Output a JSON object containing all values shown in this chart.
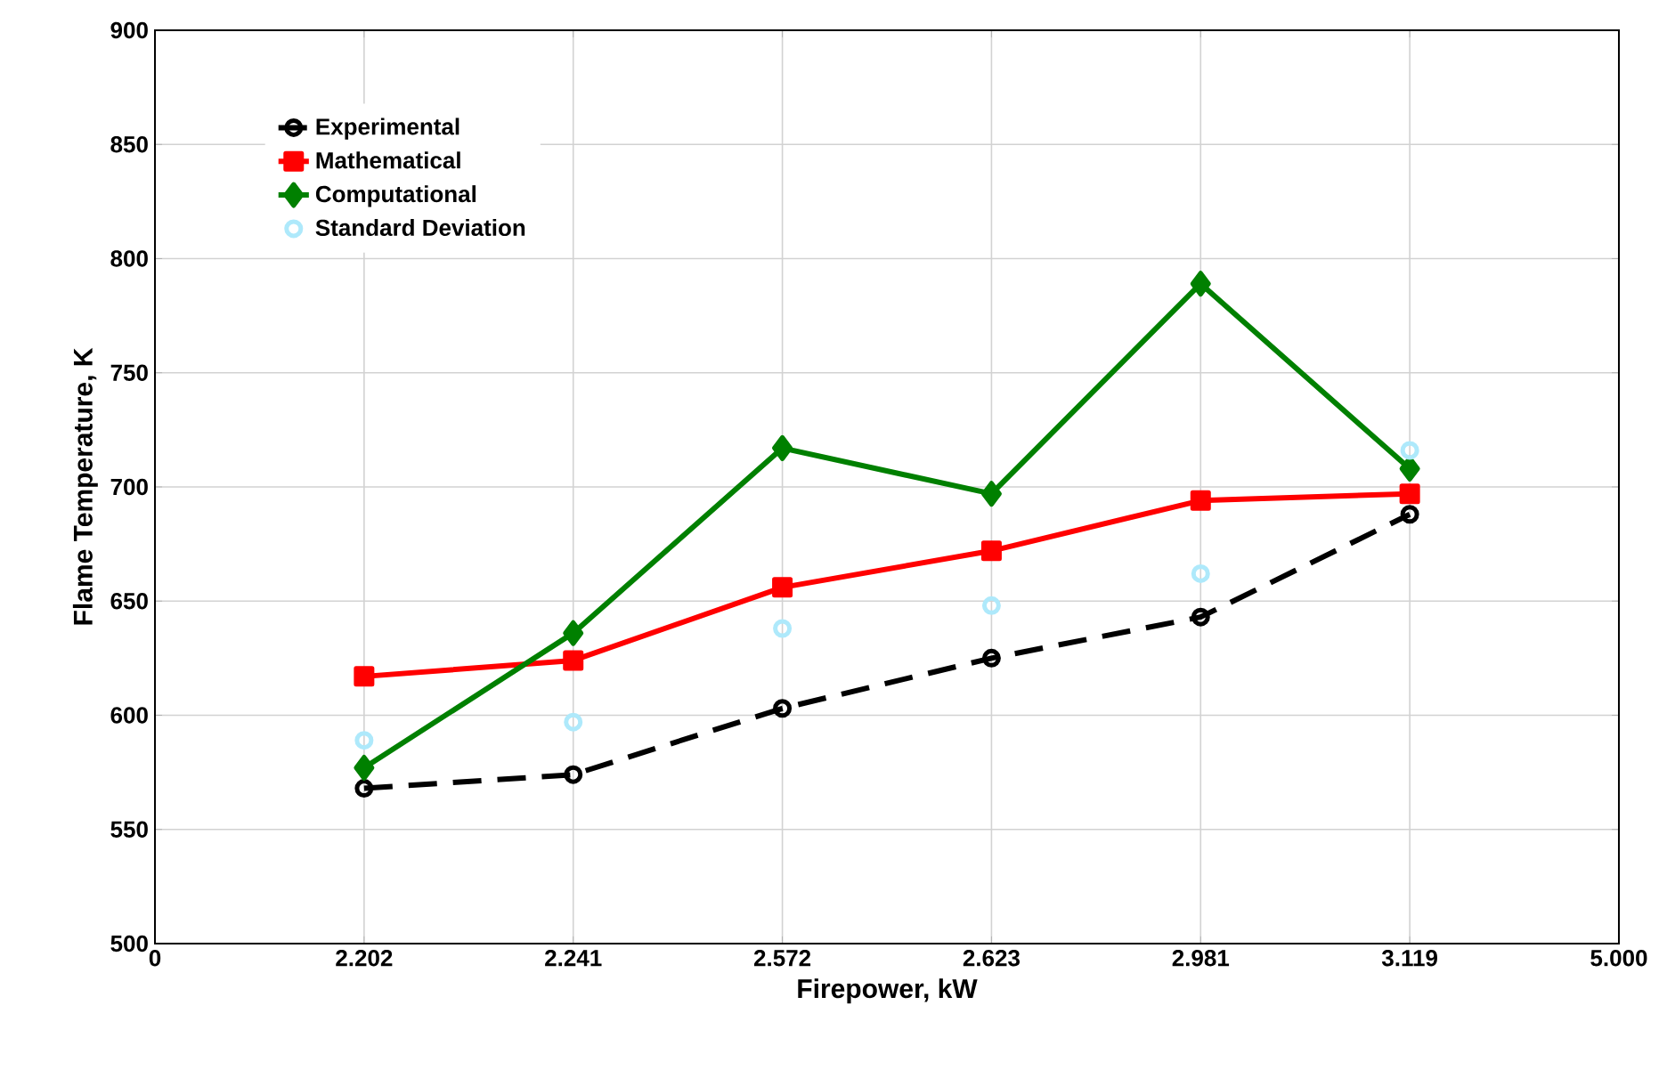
{
  "chart_data": {
    "type": "line",
    "xlabel": "Firepower, kW",
    "ylabel": "Flame Temperature, K",
    "categories": [
      "0",
      "2.202",
      "2.241",
      "2.572",
      "2.623",
      "2.981",
      "3.119",
      "5.000"
    ],
    "ylim": [
      500,
      900
    ],
    "yticks": [
      500,
      550,
      600,
      650,
      700,
      750,
      800,
      850,
      900
    ],
    "grid": true,
    "legend": "top left",
    "series": [
      {
        "name": "Experimental",
        "color": "#000000",
        "marker": "circle",
        "line_style": "dashed",
        "values": [
          null,
          568,
          574,
          603,
          625,
          643,
          688,
          null
        ]
      },
      {
        "name": "Mathematical",
        "color": "#ff0000",
        "marker": "square",
        "line_style": "solid",
        "values": [
          null,
          617,
          624,
          656,
          672,
          694,
          697,
          null
        ]
      },
      {
        "name": "Computational",
        "color": "#008000",
        "marker": "diamond",
        "line_style": "solid",
        "values": [
          null,
          577,
          636,
          717,
          697,
          789,
          708,
          null
        ]
      },
      {
        "name": "Standard Deviation",
        "type": "scatter",
        "color": "#aee9fb",
        "marker": "circle",
        "values": [
          null,
          589,
          597,
          638,
          648,
          662,
          716,
          null
        ]
      }
    ]
  }
}
